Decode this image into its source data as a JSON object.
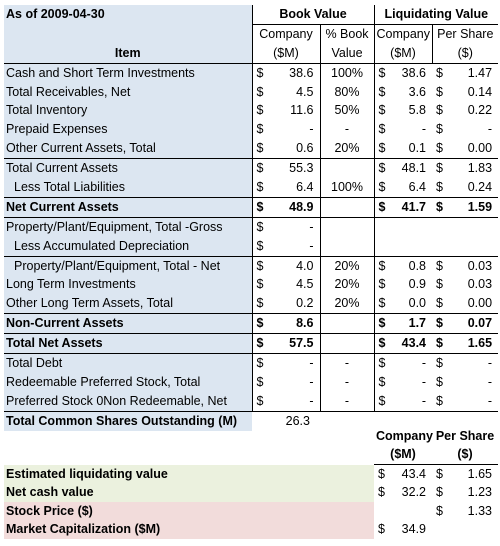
{
  "header": {
    "as_of": "As of 2009-04-30",
    "book_value": "Book Value",
    "liquidating_value": "Liquidating Value",
    "company": "Company",
    "pct_book": "% Book",
    "per_share": "Per Share",
    "sm": "($M)",
    "value": "Value",
    "dollar": "($)",
    "item": "Item"
  },
  "rows": [
    {
      "label": "Cash and Short Term Investments",
      "bv_cur": "$",
      "bv": "38.6",
      "pct": "100%",
      "lv_cur": "$",
      "lv": "38.6",
      "ps_cur": "$",
      "ps": "1.47"
    },
    {
      "label": "Total Receivables, Net",
      "bv_cur": "$",
      "bv": "4.5",
      "pct": "80%",
      "lv_cur": "$",
      "lv": "3.6",
      "ps_cur": "$",
      "ps": "0.14"
    },
    {
      "label": "Total Inventory",
      "bv_cur": "$",
      "bv": "11.6",
      "pct": "50%",
      "lv_cur": "$",
      "lv": "5.8",
      "ps_cur": "$",
      "ps": "0.22"
    },
    {
      "label": "Prepaid Expenses",
      "bv_cur": "$",
      "bv": "-",
      "pct": "-",
      "lv_cur": "$",
      "lv": "-",
      "ps_cur": "$",
      "ps": "-"
    },
    {
      "label": "Other Current Assets, Total",
      "bv_cur": "$",
      "bv": "0.6",
      "pct": "20%",
      "lv_cur": "$",
      "lv": "0.1",
      "ps_cur": "$",
      "ps": "0.00"
    },
    {
      "label": "Total Current Assets",
      "bv_cur": "$",
      "bv": "55.3",
      "pct": "",
      "lv_cur": "$",
      "lv": "48.1",
      "ps_cur": "$",
      "ps": "1.83"
    },
    {
      "label": "Less Total Liabilities",
      "bv_cur": "$",
      "bv": "6.4",
      "pct": "100%",
      "lv_cur": "$",
      "lv": "6.4",
      "ps_cur": "$",
      "ps": "0.24"
    },
    {
      "label": "Net Current Assets",
      "bv_cur": "$",
      "bv": "48.9",
      "pct": "",
      "lv_cur": "$",
      "lv": "41.7",
      "ps_cur": "$",
      "ps": "1.59"
    },
    {
      "label": "Property/Plant/Equipment, Total -Gross",
      "bv_cur": "$",
      "bv": "-",
      "pct": "",
      "lv_cur": "",
      "lv": "",
      "ps_cur": "",
      "ps": ""
    },
    {
      "label": "Less Accumulated Depreciation",
      "bv_cur": "$",
      "bv": "-",
      "pct": "",
      "lv_cur": "",
      "lv": "",
      "ps_cur": "",
      "ps": ""
    },
    {
      "label": "Property/Plant/Equipment, Total - Net",
      "bv_cur": "$",
      "bv": "4.0",
      "pct": "20%",
      "lv_cur": "$",
      "lv": "0.8",
      "ps_cur": "$",
      "ps": "0.03"
    },
    {
      "label": "Long Term Investments",
      "bv_cur": "$",
      "bv": "4.5",
      "pct": "20%",
      "lv_cur": "$",
      "lv": "0.9",
      "ps_cur": "$",
      "ps": "0.03"
    },
    {
      "label": "Other Long Term Assets, Total",
      "bv_cur": "$",
      "bv": "0.2",
      "pct": "20%",
      "lv_cur": "$",
      "lv": "0.0",
      "ps_cur": "$",
      "ps": "0.00"
    },
    {
      "label": "Non-Current Assets",
      "bv_cur": "$",
      "bv": "8.6",
      "pct": "",
      "lv_cur": "$",
      "lv": "1.7",
      "ps_cur": "$",
      "ps": "0.07"
    },
    {
      "label": "Total Net Assets",
      "bv_cur": "$",
      "bv": "57.5",
      "pct": "",
      "lv_cur": "$",
      "lv": "43.4",
      "ps_cur": "$",
      "ps": "1.65"
    },
    {
      "label": "Total Debt",
      "bv_cur": "$",
      "bv": "-",
      "pct": "-",
      "lv_cur": "$",
      "lv": "-",
      "ps_cur": "$",
      "ps": "-"
    },
    {
      "label": "Redeemable Preferred Stock, Total",
      "bv_cur": "$",
      "bv": "-",
      "pct": "-",
      "lv_cur": "$",
      "lv": "-",
      "ps_cur": "$",
      "ps": "-"
    },
    {
      "label": "Preferred Stock 0Non Redeemable, Net",
      "bv_cur": "$",
      "bv": "-",
      "pct": "-",
      "lv_cur": "$",
      "lv": "-",
      "ps_cur": "$",
      "ps": "-"
    }
  ],
  "shares": {
    "label": "Total Common Shares Outstanding (M)",
    "value": "26.3"
  },
  "summary": {
    "company": "Company",
    "per_share": "Per Share",
    "sm": "($M)",
    "dollar": "($)",
    "items": [
      {
        "label": "Estimated liquidating value",
        "c_cur": "$",
        "c": "43.4",
        "p_cur": "$",
        "p": "1.65"
      },
      {
        "label": "Net cash value",
        "c_cur": "$",
        "c": "32.2",
        "p_cur": "$",
        "p": "1.23"
      },
      {
        "label": "Stock Price ($)",
        "c_cur": "",
        "c": "",
        "p_cur": "$",
        "p": "1.33"
      },
      {
        "label": "Market Capitalization ($M)",
        "c_cur": "$",
        "c": "34.9",
        "p_cur": "",
        "p": ""
      }
    ]
  }
}
